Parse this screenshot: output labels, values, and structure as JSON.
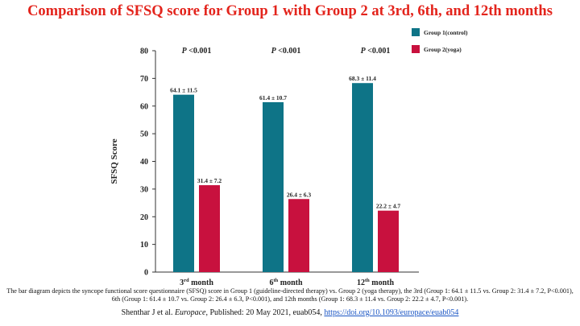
{
  "title": "Comparison of SFSQ score for Group 1 with Group 2 at 3rd, 6th, and 12th months",
  "chart_data": {
    "type": "bar",
    "categories": [
      {
        "num": "3",
        "sup": "rd",
        "word": "month"
      },
      {
        "num": "6",
        "sup": "th",
        "word": "month"
      },
      {
        "num": "12",
        "sup": "th",
        "word": "month"
      }
    ],
    "series": [
      {
        "name": "Group 1(control)",
        "color": "#0e7487",
        "values": [
          64.1,
          61.4,
          68.3
        ],
        "labels": [
          "64.1 ± 11.5",
          "61.4 ± 10.7",
          "68.3 ± 11.4"
        ]
      },
      {
        "name": "Group 2(yoga)",
        "color": "#c8113e",
        "values": [
          31.4,
          26.4,
          22.2
        ],
        "labels": [
          "31.4 ± 7.2",
          "26.4 ± 6.3",
          "22.2 ± 4.7"
        ]
      }
    ],
    "p_values": [
      "P <0.001",
      "P <0.001",
      "P <0.001"
    ],
    "ylabel": "SFSQ Score",
    "ylim": [
      0,
      80
    ],
    "yticks": [
      0,
      10,
      20,
      30,
      40,
      50,
      60,
      70,
      80
    ],
    "grid": false,
    "legend_position": "top-right"
  },
  "caption": "The bar diagram depicts the syncope functional score questionnaire (SFSQ) score in Group 1 (guideline-directed therapy) vs. Group 2 (yoga therapy), the 3rd (Group 1: 64.1 ± 11.5 vs. Group 2: 31.4 ± 7.2, P<0.001), 6th (Group 1: 61.4 ± 10.7 vs. Group 2: 26.4 ± 6.3, P<0.001), and 12th months (Group 1: 68.3 ± 11.4 vs. Group 2: 22.2 ± 4.7, P<0.001).",
  "citation": {
    "prefix": "Shenthar J et al. ",
    "journal": "Europace",
    "suffix": ", Published: 20 May 2021, euab054, ",
    "link": "https://doi.org/10.1093/europace/euab054"
  }
}
